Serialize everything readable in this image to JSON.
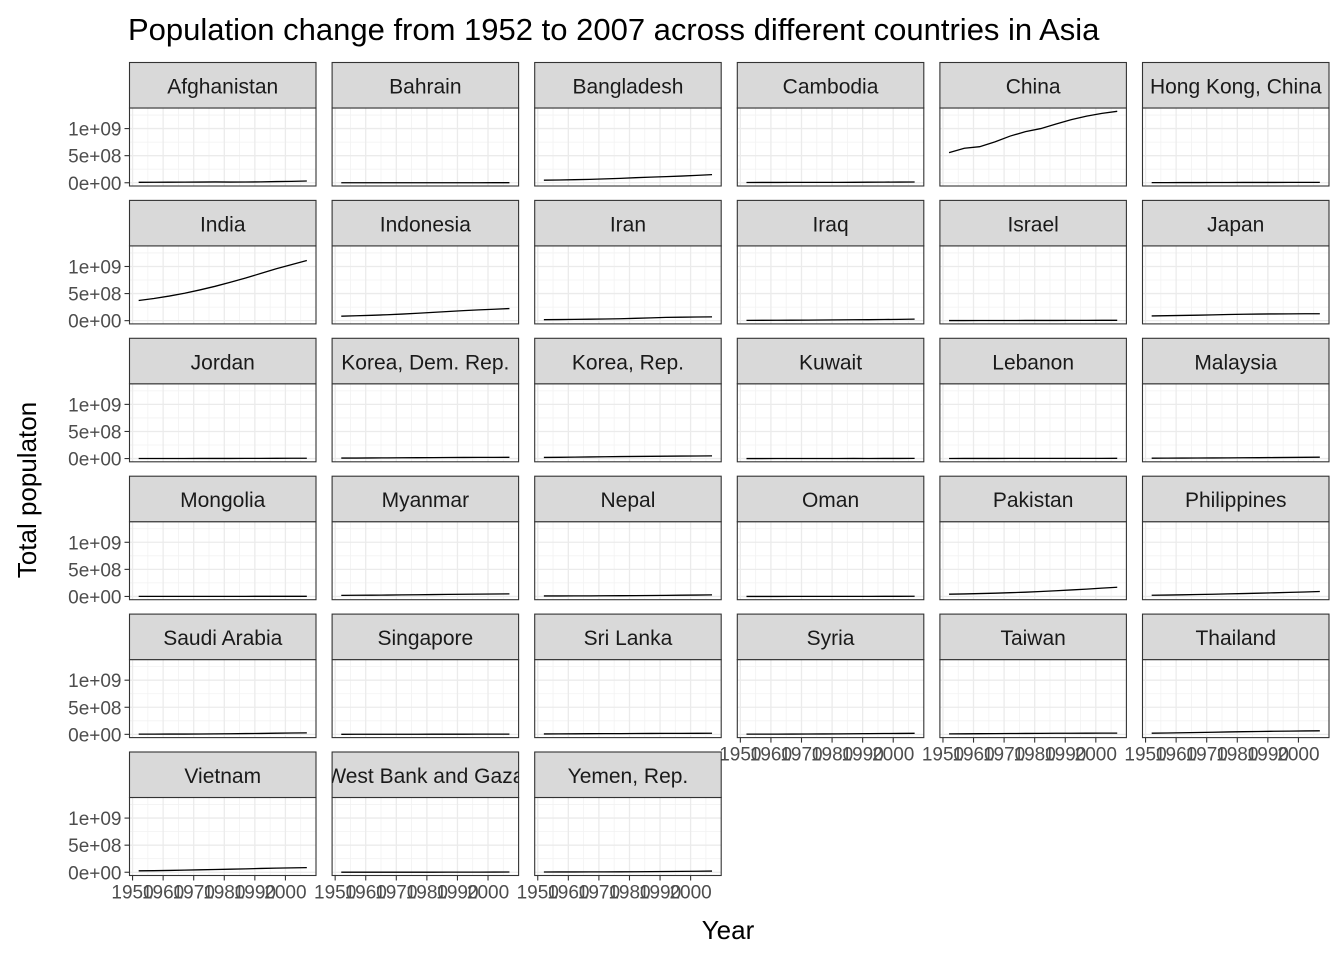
{
  "chart_data": {
    "type": "line",
    "title": "Population change from 1952 to 2007 across different countries in Asia",
    "xlabel": "Year",
    "ylabel": "Total populaton",
    "x": [
      1952,
      1957,
      1962,
      1967,
      1972,
      1977,
      1982,
      1987,
      1992,
      1997,
      2002,
      2007
    ],
    "x_ticks": [
      1950,
      1960,
      1970,
      1980,
      1990,
      2000
    ],
    "x_tick_labels": [
      "1950",
      "1960",
      "1970",
      "1980",
      "1990",
      "2000"
    ],
    "xlim": [
      1949,
      2010
    ],
    "y_ticks": [
      0,
      500000000,
      1000000000
    ],
    "y_tick_labels": [
      "0e+00",
      "5e+08",
      "1e+09"
    ],
    "ylim": [
      -60000000,
      1380000000
    ],
    "facet_columns": 6,
    "grid": true,
    "line_color": "#000000",
    "strip_fill": "#d9d9d9",
    "series": [
      {
        "name": "Afghanistan",
        "values": [
          8400000,
          9200000,
          10300000,
          11500000,
          13100000,
          14900000,
          12900000,
          13900000,
          16300000,
          22200000,
          25300000,
          31900000
        ]
      },
      {
        "name": "Bahrain",
        "values": [
          120000,
          139000,
          172000,
          202000,
          231000,
          297000,
          377000,
          455000,
          530000,
          599000,
          656000,
          708000
        ]
      },
      {
        "name": "Bangladesh",
        "values": [
          46900000,
          51400000,
          56800000,
          62800000,
          70800000,
          80400000,
          93100000,
          103800000,
          113700000,
          123300000,
          135700000,
          150400000
        ]
      },
      {
        "name": "Cambodia",
        "values": [
          4700000,
          5300000,
          6000000,
          6900000,
          7500000,
          6900000,
          7300000,
          8400000,
          10200000,
          11800000,
          12900000,
          14100000
        ]
      },
      {
        "name": "China",
        "values": [
          556300000,
          637400000,
          665800000,
          754500000,
          862000000,
          943500000,
          1000300000,
          1084000000,
          1164900000,
          1230100000,
          1280400000,
          1318700000
        ]
      },
      {
        "name": "Hong Kong, China",
        "values": [
          2100000,
          2700000,
          3300000,
          3700000,
          4100000,
          4600000,
          5300000,
          5600000,
          5800000,
          6500000,
          6800000,
          7000000
        ]
      },
      {
        "name": "India",
        "values": [
          372000000,
          409000000,
          454000000,
          506000000,
          567000000,
          634000000,
          708000000,
          788000000,
          872000000,
          959000000,
          1034200000,
          1110400000
        ]
      },
      {
        "name": "Indonesia",
        "values": [
          82100000,
          90100000,
          99000000,
          109300000,
          121300000,
          136700000,
          153300000,
          169300000,
          184800000,
          199300000,
          211100000,
          223500000
        ]
      },
      {
        "name": "Iran",
        "values": [
          17300000,
          19800000,
          22900000,
          26500000,
          30600000,
          35500000,
          43100000,
          51900000,
          60400000,
          63500000,
          66900000,
          69500000
        ]
      },
      {
        "name": "Iraq",
        "values": [
          5400000,
          6200000,
          7200000,
          8500000,
          10100000,
          11900000,
          14200000,
          16500000,
          17900000,
          20800000,
          24000000,
          27500000
        ]
      },
      {
        "name": "Israel",
        "values": [
          1600000,
          1900000,
          2300000,
          2700000,
          3100000,
          3500000,
          3900000,
          4300000,
          5000000,
          5500000,
          6000000,
          6400000
        ]
      },
      {
        "name": "Japan",
        "values": [
          86500000,
          91600000,
          95800000,
          100800000,
          107200000,
          113900000,
          118500000,
          122100000,
          124300000,
          125700000,
          127100000,
          127500000
        ]
      },
      {
        "name": "Jordan",
        "values": [
          610000,
          750000,
          930000,
          1260000,
          1610000,
          1940000,
          2350000,
          2820000,
          3870000,
          4530000,
          5310000,
          6050000
        ]
      },
      {
        "name": "Korea, Dem. Rep.",
        "values": [
          8900000,
          9400000,
          10900000,
          12600000,
          14800000,
          16300000,
          17600000,
          19100000,
          20700000,
          21600000,
          22200000,
          23300000
        ]
      },
      {
        "name": "Korea, Rep.",
        "values": [
          20900000,
          22600000,
          26400000,
          30100000,
          33500000,
          36400000,
          39300000,
          41600000,
          43800000,
          46200000,
          47700000,
          49000000
        ]
      },
      {
        "name": "Kuwait",
        "values": [
          160000,
          210000,
          360000,
          570000,
          840000,
          1140000,
          1500000,
          1890000,
          1420000,
          1770000,
          2110000,
          2510000
        ]
      },
      {
        "name": "Lebanon",
        "values": [
          1400000,
          1600000,
          1900000,
          2200000,
          2700000,
          3100000,
          3100000,
          3100000,
          3200000,
          3400000,
          3700000,
          4000000
        ]
      },
      {
        "name": "Malaysia",
        "values": [
          6700000,
          7700000,
          8900000,
          10100000,
          11400000,
          12800000,
          14400000,
          16300000,
          18300000,
          20500000,
          22700000,
          24800000
        ]
      },
      {
        "name": "Mongolia",
        "values": [
          800000,
          880000,
          1010000,
          1150000,
          1320000,
          1530000,
          1760000,
          2020000,
          2310000,
          2490000,
          2670000,
          2870000
        ]
      },
      {
        "name": "Myanmar",
        "values": [
          20100000,
          21700000,
          23600000,
          25900000,
          28500000,
          31500000,
          34700000,
          38000000,
          40500000,
          43200000,
          45600000,
          47800000
        ]
      },
      {
        "name": "Nepal",
        "values": [
          9200000,
          9700000,
          10300000,
          11300000,
          12400000,
          13900000,
          15800000,
          17900000,
          20300000,
          23000000,
          25900000,
          28900000
        ]
      },
      {
        "name": "Oman",
        "values": [
          510000,
          560000,
          630000,
          710000,
          830000,
          1000000,
          1300000,
          1600000,
          1900000,
          2300000,
          2700000,
          3200000
        ]
      },
      {
        "name": "Pakistan",
        "values": [
          41300000,
          46700000,
          53100000,
          60600000,
          69300000,
          78200000,
          91500000,
          105200000,
          120100000,
          135600000,
          153400000,
          169300000
        ]
      },
      {
        "name": "Philippines",
        "values": [
          22400000,
          26100000,
          30300000,
          35400000,
          40900000,
          46900000,
          53500000,
          60000000,
          67200000,
          75000000,
          82700000,
          91100000
        ]
      },
      {
        "name": "Saudi Arabia",
        "values": [
          4000000,
          4400000,
          4900000,
          5600000,
          6500000,
          8100000,
          11300000,
          14600000,
          16900000,
          21200000,
          24500000,
          27600000
        ]
      },
      {
        "name": "Singapore",
        "values": [
          1100000,
          1400000,
          1800000,
          1980000,
          2150000,
          2330000,
          2650000,
          2790000,
          3240000,
          3800000,
          4200000,
          4550000
        ]
      },
      {
        "name": "Sri Lanka",
        "values": [
          7980000,
          9130000,
          10420000,
          11740000,
          13020000,
          14120000,
          15410000,
          16500000,
          17590000,
          18700000,
          19580000,
          20380000
        ]
      },
      {
        "name": "Syria",
        "values": [
          3700000,
          4100000,
          4800000,
          5700000,
          6700000,
          7900000,
          9400000,
          11200000,
          13200000,
          15100000,
          17200000,
          19300000
        ]
      },
      {
        "name": "Taiwan",
        "values": [
          8600000,
          10200000,
          11900000,
          13600000,
          15200000,
          16800000,
          18500000,
          19800000,
          20700000,
          21600000,
          22500000,
          23200000
        ]
      },
      {
        "name": "Thailand",
        "values": [
          21300000,
          25000000,
          29300000,
          34000000,
          39300000,
          44100000,
          48800000,
          52900000,
          56700000,
          60200000,
          62800000,
          65100000
        ]
      },
      {
        "name": "Vietnam",
        "values": [
          26200000,
          28900000,
          33800000,
          39500000,
          44700000,
          50500000,
          56100000,
          62800000,
          69900000,
          76000000,
          80900000,
          85300000
        ]
      },
      {
        "name": "West Bank and Gaza",
        "values": [
          1030000,
          1070000,
          1130000,
          1140000,
          1090000,
          1260000,
          1430000,
          1690000,
          2100000,
          2830000,
          3390000,
          4020000
        ]
      },
      {
        "name": "Yemen, Rep.",
        "values": [
          4960000,
          5500000,
          6120000,
          6740000,
          7410000,
          8400000,
          9660000,
          11220000,
          13370000,
          15830000,
          18700000,
          22210000
        ]
      }
    ]
  }
}
